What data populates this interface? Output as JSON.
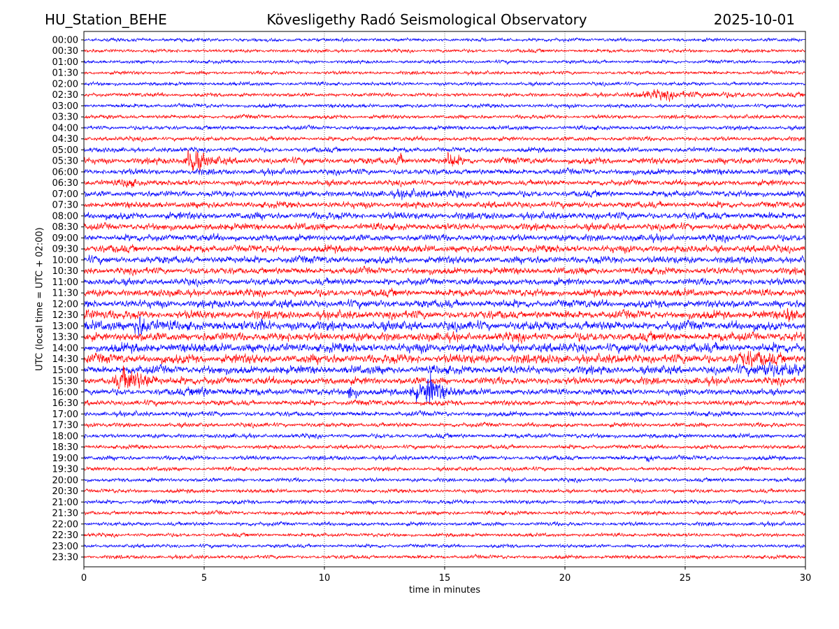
{
  "header": {
    "station": "HU_Station_BEHE",
    "title": "Kövesligethy Radó Seismological Observatory",
    "date": "2025-10-01"
  },
  "chart_data": {
    "type": "line",
    "title": "Kövesligethy Radó Seismological Observatory",
    "xlabel": "time in minutes",
    "ylabel": "UTC (local time = UTC + 02:00)",
    "xlim": [
      0,
      30
    ],
    "x_ticks": [
      "0",
      "5",
      "10",
      "15",
      "20",
      "25",
      "30"
    ],
    "y_ticks": [
      "00:00",
      "00:30",
      "01:00",
      "01:30",
      "02:00",
      "02:30",
      "03:00",
      "03:30",
      "04:00",
      "04:30",
      "05:00",
      "05:30",
      "06:00",
      "06:30",
      "07:00",
      "07:30",
      "08:00",
      "08:30",
      "09:00",
      "09:30",
      "10:00",
      "10:30",
      "11:00",
      "11:30",
      "12:00",
      "12:30",
      "13:00",
      "13:30",
      "14:00",
      "14:30",
      "15:00",
      "15:30",
      "16:00",
      "16:30",
      "17:00",
      "17:30",
      "18:00",
      "18:30",
      "19:00",
      "19:30",
      "20:00",
      "20:30",
      "21:00",
      "21:30",
      "22:00",
      "22:30",
      "23:00",
      "23:30"
    ],
    "grid": "vertical dotted",
    "colors": [
      "#0000ff",
      "#ff0000"
    ],
    "noise_level": [
      1.4,
      1.4,
      1.4,
      1.4,
      1.5,
      1.6,
      1.6,
      1.6,
      1.7,
      1.8,
      2.0,
      2.6,
      2.4,
      2.3,
      2.5,
      2.6,
      2.9,
      2.8,
      2.8,
      3.0,
      3.0,
      2.8,
      2.8,
      3.0,
      3.2,
      3.4,
      3.8,
      3.6,
      3.8,
      3.8,
      3.4,
      3.0,
      2.6,
      2.2,
      2.0,
      1.8,
      1.8,
      1.7,
      1.8,
      1.6,
      1.6,
      1.6,
      1.7,
      1.6,
      1.6,
      1.5,
      1.5,
      1.5
    ],
    "events": [
      {
        "row": 5,
        "minute": 24,
        "amplitude": 3,
        "duration": 2.2
      },
      {
        "row": 11,
        "minute": 4.5,
        "amplitude": 14,
        "duration": 0.4
      },
      {
        "row": 11,
        "minute": 13.1,
        "amplitude": 6,
        "duration": 0.15
      },
      {
        "row": 11,
        "minute": 15.2,
        "amplitude": 7,
        "duration": 0.25
      },
      {
        "row": 13,
        "minute": 1.8,
        "amplitude": 4,
        "duration": 0.3
      },
      {
        "row": 14,
        "minute": 13.5,
        "amplitude": 3,
        "duration": 0.8
      },
      {
        "row": 25,
        "minute": 0.1,
        "amplitude": 5,
        "duration": 0.25
      },
      {
        "row": 25,
        "minute": 29.3,
        "amplitude": 5,
        "duration": 0.25
      },
      {
        "row": 26,
        "minute": 2.3,
        "amplitude": 10,
        "duration": 0.35
      },
      {
        "row": 26,
        "minute": 7.4,
        "amplitude": 5,
        "duration": 0.2
      },
      {
        "row": 29,
        "minute": 27.5,
        "amplitude": 4,
        "duration": 1.0
      },
      {
        "row": 30,
        "minute": 28.5,
        "amplitude": 5,
        "duration": 1.2
      },
      {
        "row": 31,
        "minute": 1.8,
        "amplitude": 10,
        "duration": 0.7
      },
      {
        "row": 32,
        "minute": 4.9,
        "amplitude": 3,
        "duration": 0.8
      },
      {
        "row": 32,
        "minute": 11.1,
        "amplitude": 9,
        "duration": 0.2
      },
      {
        "row": 32,
        "minute": 13.8,
        "amplitude": 7,
        "duration": 0.3
      },
      {
        "row": 32,
        "minute": 14.4,
        "amplitude": 15,
        "duration": 0.4
      },
      {
        "row": 38,
        "minute": 23.5,
        "amplitude": 3,
        "duration": 0.2
      }
    ]
  }
}
